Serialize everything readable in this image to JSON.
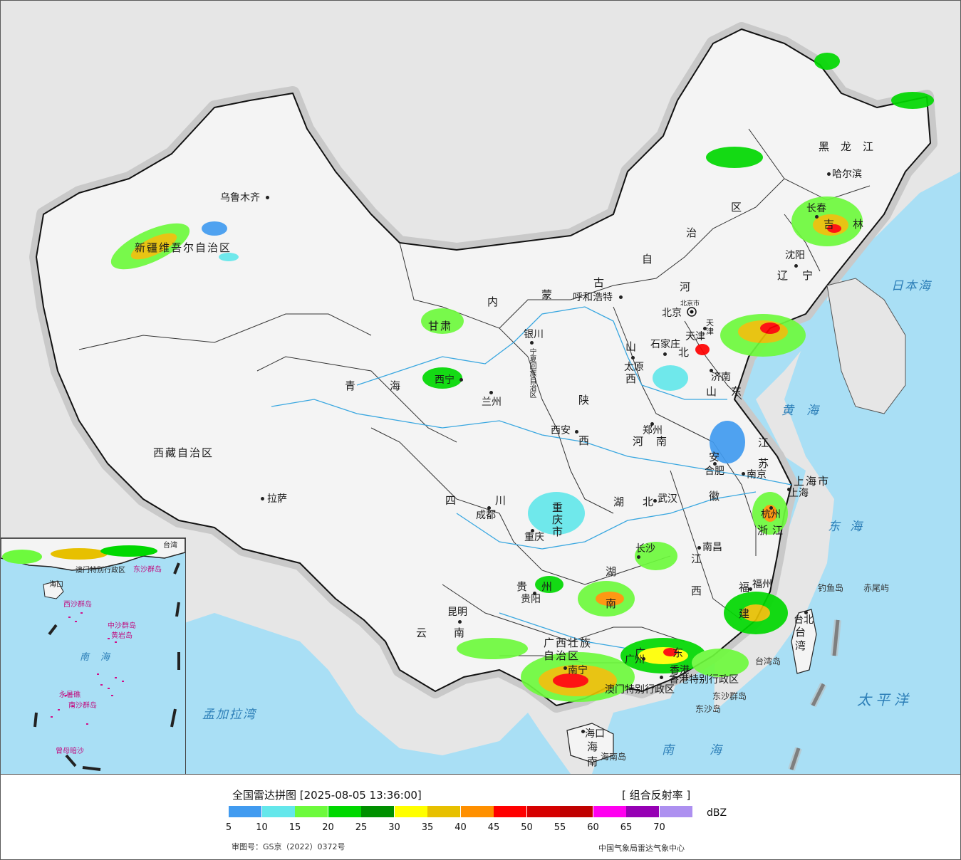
{
  "map": {
    "country_name": "",
    "provinces": {
      "xinjiang": "新疆维吾尔自治区",
      "xizang": "西藏自治区",
      "qinghai": "青海",
      "gansu": "甘肃",
      "neimenggu_1": "内",
      "neimenggu_2": "蒙",
      "neimenggu_3": "古",
      "neimenggu_4": "自",
      "neimenggu_5": "治",
      "neimenggu_6": "区",
      "heilongjiang": "黑龙江",
      "jilin": "吉林",
      "liaoning": "辽宁",
      "hebei_1": "河",
      "hebei_2": "北",
      "shanxi": "山西",
      "shandong": "山东",
      "henan": "河南",
      "shaanxi": "陕西",
      "ningxia": "宁夏回族自治区",
      "sichuan": "四川",
      "chongqing": "重庆市",
      "hubei": "湖北",
      "hunan": "湖南",
      "jiangxi": "江西",
      "anhui": "安徽",
      "jiangsu": "江苏",
      "zhejiang": "浙江",
      "fujian": "福建",
      "guizhou": "贵州",
      "yunnan": "云南",
      "guangxi": "广西壮族自治区",
      "guangdong": "广东",
      "hainan": "海南",
      "shanghai": "上海市",
      "taiwan": "台湾",
      "tianjin": "天津",
      "beijing": "北京市",
      "hongkong": "香港特别行政区",
      "macau": "澳门特别行政区"
    },
    "cities": {
      "urumqi": "乌鲁木齐",
      "lhasa": "拉萨",
      "xining": "西宁",
      "lanzhou": "兰州",
      "yinchuan": "银川",
      "hohhot": "呼和浩特",
      "beijing": "北京",
      "tianjin": "天津",
      "shijiazhuang": "石家庄",
      "taiyuan": "太原",
      "jinan": "济南",
      "zhengzhou": "郑州",
      "xian": "西安",
      "chengdu": "成都",
      "chongqing": "重庆",
      "wuhan": "武汉",
      "hefei": "合肥",
      "nanjing": "南京",
      "shanghai": "上海",
      "hangzhou": "杭州",
      "nanchang": "南昌",
      "changsha": "长沙",
      "guiyang": "贵阳",
      "kunming": "昆明",
      "nanning": "南宁",
      "guangzhou": "广州",
      "hongkong": "香港",
      "fuzhou": "福州",
      "taipei": "台北",
      "haikou": "海口",
      "harbin": "哈尔滨",
      "changchun": "长春",
      "shenyang": "沈阳"
    },
    "seas": {
      "japan_sea": "日本海",
      "yellow_sea": "黄海",
      "east_sea": "东海",
      "south_sea": "南海",
      "pacific": "太平洋",
      "bengal": "孟加拉湾"
    },
    "islands": {
      "diaoyu": "钓鱼岛",
      "chiwei": "赤尾屿",
      "taiwan_island": "台湾岛",
      "dongsha_islands": "东沙群岛",
      "dongsha_island": "东沙岛",
      "hainan_island": "海南岛"
    },
    "inset": {
      "south_sea": "南海",
      "xisha": "西沙群岛",
      "zhongsha": "中沙群岛",
      "huangyan": "黄岩岛",
      "nansha": "南沙群岛",
      "macau": "澳门特别行政区",
      "dongsha": "东沙群岛",
      "haikou": "海口",
      "taiwan": "台湾",
      "yongshu": "永暑礁",
      "zengmu": "曾母暗沙"
    }
  },
  "legend": {
    "title": "全国雷达拼图 [2025-08-05 13:36:00]",
    "product": "[ 组合反射率 ]",
    "unit": "dBZ",
    "ticks": [
      "5",
      "10",
      "15",
      "20",
      "25",
      "30",
      "35",
      "40",
      "45",
      "50",
      "55",
      "60",
      "65",
      "70"
    ],
    "colors": [
      "#419bf0",
      "#64e7eb",
      "#6dfa3d",
      "#00d800",
      "#009000",
      "#ffff00",
      "#e7c000",
      "#ff9000",
      "#ff0000",
      "#d60000",
      "#c00000",
      "#ff00f0",
      "#9600b4",
      "#ad90f0"
    ],
    "map_approval": "审图号：GS京（2022）0372号",
    "issuer": "中国气象局雷达气象中心"
  }
}
